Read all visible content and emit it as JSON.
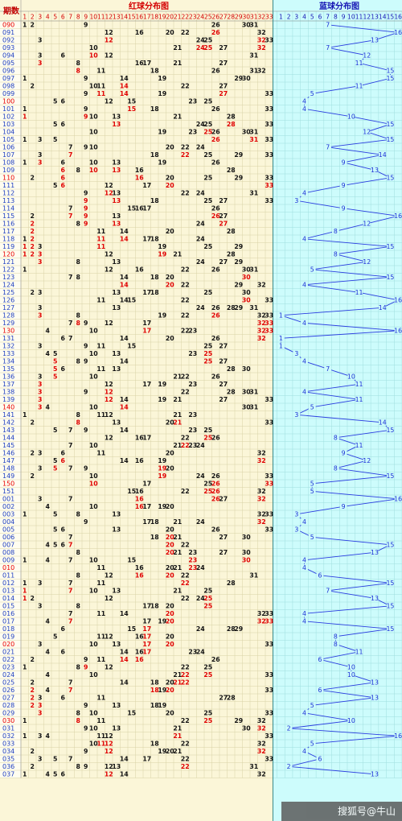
{
  "header": {
    "period_label": "期数",
    "red_title": "红球分布图",
    "blue_title": "蓝球分布图"
  },
  "watermark": "搜狐号@牛山",
  "colors": {
    "red_bg": "#fbf6d8",
    "blue_bg": "#cdfcfc",
    "grid_red": "#d8d2a6",
    "grid_blue": "#9fdede",
    "title_red": "#d40000",
    "title_blue": "#1414b4",
    "ball_black": "#111111",
    "ball_red": "#e00000",
    "blue_ball": "#1a2fd6",
    "blue_line": "#2a3de0",
    "row_highlight": "#e80000",
    "row_normal": "#1f3fc0"
  },
  "chart_data": {
    "type": "table",
    "red_columns": [
      "1",
      "2",
      "3",
      "4",
      "5",
      "6",
      "7",
      "8",
      "9",
      "10",
      "11",
      "12",
      "13",
      "14",
      "15",
      "16",
      "17",
      "18",
      "19",
      "20",
      "21",
      "22",
      "23",
      "24",
      "25",
      "26",
      "27",
      "28",
      "29",
      "30",
      "31",
      "32",
      "33"
    ],
    "blue_columns": [
      "1",
      "2",
      "3",
      "4",
      "5",
      "6",
      "7",
      "8",
      "9",
      "10",
      "11",
      "12",
      "13",
      "14",
      "15",
      "16"
    ],
    "red_highlight_rule": "ball repeated from previous issue shown in red",
    "rows": [
      {
        "p": "090",
        "r": [
          1,
          2,
          9,
          26,
          30,
          31
        ],
        "b": 7
      },
      {
        "p": "091",
        "r": [
          12,
          16,
          20,
          22,
          26,
          32
        ],
        "b": 16
      },
      {
        "p": "092",
        "r": [
          3,
          12,
          24,
          25,
          32,
          33
        ],
        "b": 13
      },
      {
        "p": "093",
        "r": [
          10,
          21,
          24,
          25,
          27,
          32
        ],
        "b": 7
      },
      {
        "p": "094",
        "r": [
          3,
          6,
          10,
          12,
          31
        ],
        "b": 12
      },
      {
        "p": "095",
        "r": [
          3,
          8,
          16,
          17,
          21,
          27
        ],
        "b": 11
      },
      {
        "p": "096",
        "r": [
          8,
          11,
          18,
          26,
          31,
          32
        ],
        "b": 15
      },
      {
        "p": "097",
        "r": [
          1,
          9,
          14,
          19,
          29,
          30
        ],
        "b": 15
      },
      {
        "p": "098",
        "r": [
          2,
          10,
          11,
          14,
          22,
          27
        ],
        "b": 11
      },
      {
        "p": "099",
        "r": [
          9,
          11,
          14,
          19,
          27,
          33
        ],
        "b": 5
      },
      {
        "p": "100",
        "r": [
          5,
          6,
          12,
          15,
          23,
          25
        ],
        "b": 4
      },
      {
        "p": "101",
        "r": [
          1,
          9,
          15,
          18,
          26,
          33
        ],
        "b": 4
      },
      {
        "p": "102",
        "r": [
          1,
          9,
          10,
          13,
          21,
          28
        ],
        "b": 10
      },
      {
        "p": "103",
        "r": [
          5,
          6,
          13,
          24,
          25,
          28,
          33
        ],
        "b": 15
      },
      {
        "p": "104",
        "r": [
          10,
          19,
          23,
          25,
          26,
          30,
          31
        ],
        "b": 12
      },
      {
        "p": "105",
        "r": [
          1,
          3,
          5,
          26,
          31,
          33
        ],
        "b": 15
      },
      {
        "p": "106",
        "r": [
          7,
          9,
          10,
          20,
          22,
          24
        ],
        "b": 7
      },
      {
        "p": "107",
        "r": [
          3,
          7,
          18,
          22,
          25,
          29,
          33
        ],
        "b": 14
      },
      {
        "p": "108",
        "r": [
          1,
          3,
          6,
          10,
          13,
          19,
          26
        ],
        "b": 9
      },
      {
        "p": "109",
        "r": [
          6,
          8,
          10,
          13,
          16,
          28
        ],
        "b": 13
      },
      {
        "p": "110",
        "r": [
          2,
          6,
          16,
          20,
          25,
          29,
          33
        ],
        "b": 15
      },
      {
        "p": "111",
        "r": [
          5,
          6,
          12,
          17,
          20,
          33
        ],
        "b": 9
      },
      {
        "p": "112",
        "r": [
          9,
          12,
          13,
          22,
          24,
          31
        ],
        "b": 4
      },
      {
        "p": "113",
        "r": [
          9,
          13,
          18,
          25,
          27,
          33
        ],
        "b": 3
      },
      {
        "p": "114",
        "r": [
          7,
          9,
          15,
          16,
          17,
          26
        ],
        "b": 9
      },
      {
        "p": "115",
        "r": [
          2,
          7,
          9,
          13,
          26,
          27
        ],
        "b": 16
      },
      {
        "p": "116",
        "r": [
          2,
          8,
          9,
          13,
          24,
          27
        ],
        "b": 12
      },
      {
        "p": "117",
        "r": [
          2,
          11,
          14,
          20,
          28
        ],
        "b": 8
      },
      {
        "p": "118",
        "r": [
          1,
          2,
          11,
          14,
          17,
          18,
          24
        ],
        "b": 4
      },
      {
        "p": "119",
        "r": [
          1,
          2,
          3,
          11,
          19,
          25,
          29
        ],
        "b": 15
      },
      {
        "p": "120",
        "r": [
          1,
          2,
          3,
          12,
          19,
          21,
          28
        ],
        "b": 8
      },
      {
        "p": "121",
        "r": [
          3,
          8,
          13,
          24,
          27,
          29
        ],
        "b": 12
      },
      {
        "p": "122",
        "r": [
          1,
          12,
          16,
          22,
          26,
          30,
          31
        ],
        "b": 5
      },
      {
        "p": "123",
        "r": [
          7,
          8,
          14,
          18,
          20,
          30
        ],
        "b": 15
      },
      {
        "p": "124",
        "r": [
          14,
          20,
          22,
          29,
          32
        ],
        "b": 4
      },
      {
        "p": "125",
        "r": [
          2,
          3,
          13,
          17,
          18,
          25,
          30
        ],
        "b": 11
      },
      {
        "p": "126",
        "r": [
          11,
          14,
          15,
          22,
          30,
          33
        ],
        "b": 16
      },
      {
        "p": "127",
        "r": [
          3,
          13,
          24,
          26,
          28,
          29,
          31
        ],
        "b": 14
      },
      {
        "p": "128",
        "r": [
          3,
          8,
          19,
          22,
          26,
          32,
          33
        ],
        "b": 1
      },
      {
        "p": "129",
        "r": [
          7,
          8,
          9,
          12,
          17,
          32,
          33
        ],
        "b": 4
      },
      {
        "p": "130",
        "r": [
          4,
          10,
          17,
          22,
          23,
          32,
          33
        ],
        "b": 16
      },
      {
        "p": "131",
        "r": [
          6,
          7,
          14,
          20,
          26,
          32
        ],
        "b": 1
      },
      {
        "p": "132",
        "r": [
          3,
          9,
          11,
          15,
          25,
          27
        ],
        "b": 1
      },
      {
        "p": "133",
        "r": [
          4,
          5,
          10,
          13,
          23,
          25
        ],
        "b": 3
      },
      {
        "p": "134",
        "r": [
          5,
          8,
          9,
          14,
          25,
          27
        ],
        "b": 4
      },
      {
        "p": "135",
        "r": [
          5,
          6,
          11,
          13,
          28,
          30
        ],
        "b": 7
      },
      {
        "p": "136",
        "r": [
          3,
          5,
          10,
          21,
          22,
          26
        ],
        "b": 10
      },
      {
        "p": "137",
        "r": [
          3,
          12,
          17,
          19,
          23,
          27
        ],
        "b": 11
      },
      {
        "p": "138",
        "r": [
          3,
          9,
          12,
          22,
          28,
          30,
          31
        ],
        "b": 4
      },
      {
        "p": "139",
        "r": [
          3,
          12,
          14,
          19,
          21,
          27,
          33
        ],
        "b": 11
      },
      {
        "p": "140",
        "r": [
          3,
          4,
          10,
          14,
          30,
          31
        ],
        "b": 5
      },
      {
        "p": "141",
        "r": [
          1,
          8,
          11,
          12,
          21,
          23
        ],
        "b": 3
      },
      {
        "p": "142",
        "r": [
          2,
          8,
          13,
          20,
          21,
          33
        ],
        "b": 14
      },
      {
        "p": "143",
        "r": [
          5,
          7,
          9,
          14,
          23,
          25
        ],
        "b": 15
      },
      {
        "p": "144",
        "r": [
          12,
          16,
          17,
          22,
          25,
          26
        ],
        "b": 8
      },
      {
        "p": "145",
        "r": [
          7,
          10,
          21,
          22,
          23,
          24
        ],
        "b": 11
      },
      {
        "p": "146",
        "r": [
          2,
          3,
          6,
          11,
          20,
          32
        ],
        "b": 9
      },
      {
        "p": "147",
        "r": [
          5,
          6,
          14,
          16,
          19,
          32
        ],
        "b": 12
      },
      {
        "p": "148",
        "r": [
          3,
          5,
          7,
          9,
          19,
          20
        ],
        "b": 8
      },
      {
        "p": "149",
        "r": [
          2,
          10,
          19,
          24,
          26,
          33
        ],
        "b": 15
      },
      {
        "p": "150",
        "r": [
          10,
          17,
          25,
          26,
          33
        ],
        "b": 5
      },
      {
        "p": "151",
        "r": [
          15,
          16,
          22,
          25,
          26,
          32
        ],
        "b": 5
      },
      {
        "p": "001",
        "r": [
          3,
          7,
          16,
          26,
          27,
          32
        ],
        "b": 16
      },
      {
        "p": "002",
        "r": [
          4,
          10,
          16,
          17,
          19,
          20
        ],
        "b": 9
      },
      {
        "p": "003",
        "r": [
          1,
          5,
          8,
          13,
          32,
          33
        ],
        "b": 3
      },
      {
        "p": "004",
        "r": [
          9,
          17,
          18,
          21,
          24,
          32
        ],
        "b": 4
      },
      {
        "p": "005",
        "r": [
          5,
          6,
          13,
          20,
          26,
          33
        ],
        "b": 3
      },
      {
        "p": "006",
        "r": [
          7,
          18,
          20,
          21,
          27,
          30
        ],
        "b": 5
      },
      {
        "p": "007",
        "r": [
          4,
          5,
          6,
          7,
          20,
          22
        ],
        "b": 15
      },
      {
        "p": "008",
        "r": [
          8,
          20,
          21,
          23,
          27,
          30
        ],
        "b": 13
      },
      {
        "p": "009",
        "r": [
          1,
          4,
          7,
          10,
          15,
          23,
          30
        ],
        "b": 4
      },
      {
        "p": "010",
        "r": [
          11,
          16,
          20,
          21,
          23,
          24
        ],
        "b": 4
      },
      {
        "p": "011",
        "r": [
          8,
          12,
          16,
          20,
          22,
          31
        ],
        "b": 6
      },
      {
        "p": "012",
        "r": [
          1,
          3,
          7,
          11,
          22,
          28
        ],
        "b": 15
      },
      {
        "p": "013",
        "r": [
          1,
          7,
          10,
          13,
          21,
          25
        ],
        "b": 7
      },
      {
        "p": "014",
        "r": [
          1,
          2,
          12,
          22,
          24,
          25
        ],
        "b": 13
      },
      {
        "p": "015",
        "r": [
          3,
          8,
          17,
          18,
          20,
          25
        ],
        "b": 15
      },
      {
        "p": "016",
        "r": [
          7,
          11,
          14,
          20,
          32,
          33
        ],
        "b": 4
      },
      {
        "p": "017",
        "r": [
          4,
          7,
          17,
          19,
          20,
          32,
          33
        ],
        "b": 4
      },
      {
        "p": "018",
        "r": [
          6,
          15,
          17,
          24,
          28,
          29
        ],
        "b": 15
      },
      {
        "p": "019",
        "r": [
          5,
          11,
          12,
          16,
          17,
          20
        ],
        "b": 8
      },
      {
        "p": "020",
        "r": [
          3,
          10,
          13,
          17,
          20,
          33
        ],
        "b": 8
      },
      {
        "p": "021",
        "r": [
          4,
          6,
          14,
          16,
          17,
          23,
          24
        ],
        "b": 11
      },
      {
        "p": "022",
        "r": [
          2,
          9,
          11,
          14,
          16,
          26
        ],
        "b": 6
      },
      {
        "p": "023",
        "r": [
          1,
          8,
          9,
          12,
          22,
          25
        ],
        "b": 10
      },
      {
        "p": "024",
        "r": [
          4,
          10,
          21,
          22,
          25,
          33
        ],
        "b": 10
      },
      {
        "p": "025",
        "r": [
          2,
          7,
          14,
          18,
          20,
          21,
          22
        ],
        "b": 13
      },
      {
        "p": "026",
        "r": [
          2,
          4,
          7,
          18,
          19,
          20,
          33
        ],
        "b": 6
      },
      {
        "p": "027",
        "r": [
          2,
          3,
          6,
          11,
          27,
          28
        ],
        "b": 13
      },
      {
        "p": "028",
        "r": [
          2,
          3,
          9,
          13,
          18,
          19
        ],
        "b": 5
      },
      {
        "p": "029",
        "r": [
          3,
          8,
          10,
          15,
          20,
          25,
          33
        ],
        "b": 4
      },
      {
        "p": "030",
        "r": [
          1,
          8,
          11,
          22,
          25,
          29,
          32
        ],
        "b": 10
      },
      {
        "p": "031",
        "r": [
          9,
          10,
          13,
          21,
          30,
          32
        ],
        "b": 2
      },
      {
        "p": "032",
        "r": [
          1,
          3,
          4,
          11,
          12,
          21,
          33
        ],
        "b": 16
      },
      {
        "p": "033",
        "r": [
          10,
          11,
          12,
          18,
          22,
          32
        ],
        "b": 5
      },
      {
        "p": "034",
        "r": [
          2,
          9,
          12,
          19,
          20,
          21,
          32
        ],
        "b": 4
      },
      {
        "p": "035",
        "r": [
          3,
          5,
          7,
          14,
          17,
          22,
          33
        ],
        "b": 6
      },
      {
        "p": "036",
        "r": [
          2,
          8,
          9,
          12,
          13,
          22,
          31
        ],
        "b": 2
      },
      {
        "p": "037",
        "r": [
          1,
          4,
          5,
          6,
          12,
          14,
          32
        ],
        "b": 13
      }
    ]
  }
}
